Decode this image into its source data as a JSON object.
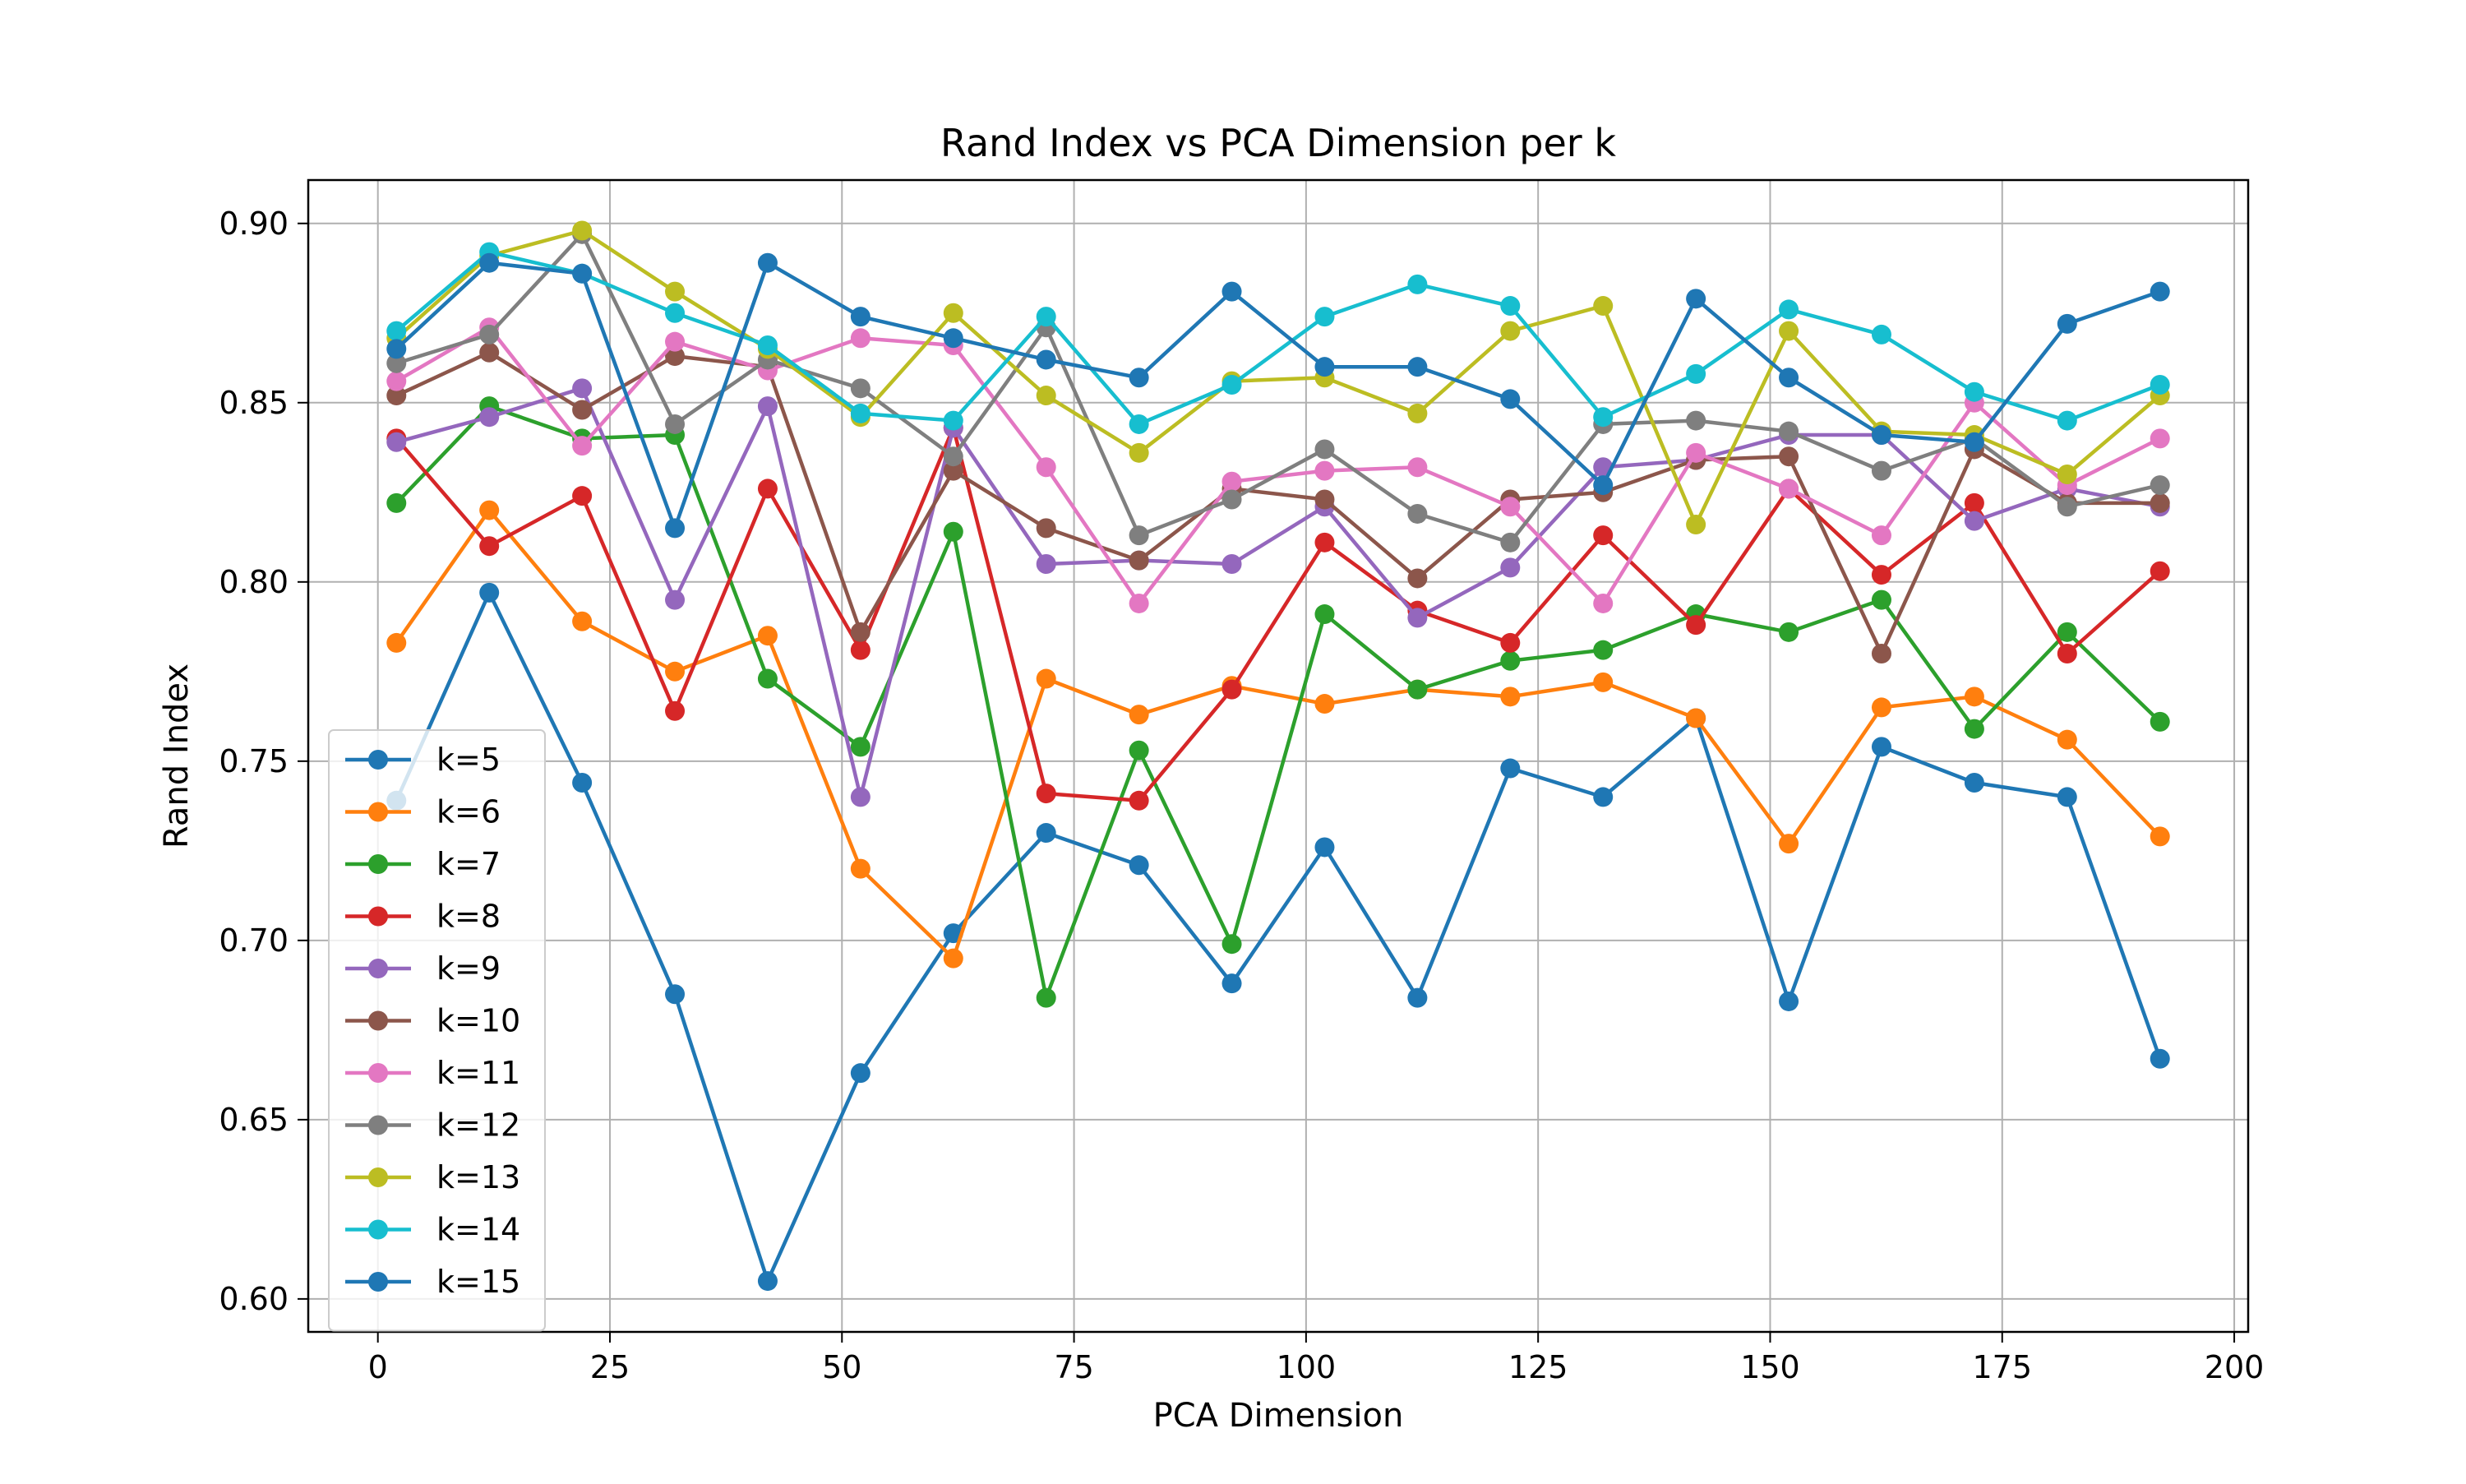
{
  "chart_data": {
    "type": "line",
    "title": "Rand Index vs PCA Dimension per k",
    "xlabel": "PCA Dimension",
    "ylabel": "Rand Index",
    "xlim": [
      -7.5,
      201.5
    ],
    "ylim": [
      0.5908,
      0.9121
    ],
    "xticks": [
      0,
      25,
      50,
      75,
      100,
      125,
      150,
      175,
      200
    ],
    "xtick_labels": [
      "0",
      "25",
      "50",
      "75",
      "100",
      "125",
      "150",
      "175",
      "200"
    ],
    "yticks": [
      0.6,
      0.65,
      0.7,
      0.75,
      0.8,
      0.85,
      0.9
    ],
    "ytick_labels": [
      "0.60",
      "0.65",
      "0.70",
      "0.75",
      "0.80",
      "0.85",
      "0.90"
    ],
    "grid": true,
    "legend_position": "lower-left",
    "x": [
      2,
      12,
      22,
      32,
      42,
      52,
      62,
      72,
      82,
      92,
      102,
      112,
      122,
      132,
      142,
      152,
      162,
      172,
      182,
      192
    ],
    "series": [
      {
        "name": "k=5",
        "color": "#1f77b4",
        "values": [
          0.739,
          0.797,
          0.744,
          0.685,
          0.605,
          0.663,
          0.702,
          0.73,
          0.721,
          0.688,
          0.726,
          0.684,
          0.748,
          0.74,
          0.762,
          0.683,
          0.754,
          0.744,
          0.74,
          0.667
        ]
      },
      {
        "name": "k=6",
        "color": "#ff7f0e",
        "values": [
          0.783,
          0.82,
          0.789,
          0.775,
          0.785,
          0.72,
          0.695,
          0.773,
          0.763,
          0.771,
          0.766,
          0.77,
          0.768,
          0.772,
          0.762,
          0.727,
          0.765,
          0.768,
          0.756,
          0.729
        ]
      },
      {
        "name": "k=7",
        "color": "#2ca02c",
        "values": [
          0.822,
          0.849,
          0.84,
          0.841,
          0.773,
          0.754,
          0.814,
          0.684,
          0.753,
          0.699,
          0.791,
          0.77,
          0.778,
          0.781,
          0.791,
          0.786,
          0.795,
          0.759,
          0.786,
          0.761
        ]
      },
      {
        "name": "k=8",
        "color": "#d62728",
        "values": [
          0.84,
          0.81,
          0.824,
          0.764,
          0.826,
          0.781,
          0.843,
          0.741,
          0.739,
          0.77,
          0.811,
          0.792,
          0.783,
          0.813,
          0.788,
          0.826,
          0.802,
          0.822,
          0.78,
          0.803
        ]
      },
      {
        "name": "k=9",
        "color": "#9467bd",
        "values": [
          0.839,
          0.846,
          0.854,
          0.795,
          0.849,
          0.74,
          0.843,
          0.805,
          0.806,
          0.805,
          0.821,
          0.79,
          0.804,
          0.832,
          0.834,
          0.841,
          0.841,
          0.817,
          0.826,
          0.821
        ]
      },
      {
        "name": "k=10",
        "color": "#8c564b",
        "values": [
          0.852,
          0.864,
          0.848,
          0.863,
          0.86,
          0.786,
          0.831,
          0.815,
          0.806,
          0.826,
          0.823,
          0.801,
          0.823,
          0.825,
          0.834,
          0.835,
          0.78,
          0.837,
          0.822,
          0.822
        ]
      },
      {
        "name": "k=11",
        "color": "#e377c2",
        "values": [
          0.856,
          0.871,
          0.838,
          0.867,
          0.859,
          0.868,
          0.866,
          0.832,
          0.794,
          0.828,
          0.831,
          0.832,
          0.821,
          0.794,
          0.836,
          0.826,
          0.813,
          0.85,
          0.827,
          0.84
        ]
      },
      {
        "name": "k=12",
        "color": "#7f7f7f",
        "values": [
          0.861,
          0.869,
          0.897,
          0.844,
          0.862,
          0.854,
          0.835,
          0.871,
          0.813,
          0.823,
          0.837,
          0.819,
          0.811,
          0.844,
          0.845,
          0.842,
          0.831,
          0.84,
          0.821,
          0.827
        ]
      },
      {
        "name": "k=13",
        "color": "#bcbd22",
        "values": [
          0.868,
          0.891,
          0.898,
          0.881,
          0.865,
          0.846,
          0.875,
          0.852,
          0.836,
          0.856,
          0.857,
          0.847,
          0.87,
          0.877,
          0.816,
          0.87,
          0.842,
          0.841,
          0.83,
          0.852
        ]
      },
      {
        "name": "k=14",
        "color": "#17becf",
        "values": [
          0.87,
          0.892,
          0.886,
          0.875,
          0.866,
          0.847,
          0.845,
          0.874,
          0.844,
          0.855,
          0.874,
          0.883,
          0.877,
          0.846,
          0.858,
          0.876,
          0.869,
          0.853,
          0.845,
          0.855
        ]
      },
      {
        "name": "k=15",
        "color": "#1f77b4",
        "values": [
          0.865,
          0.889,
          0.886,
          0.815,
          0.889,
          0.874,
          0.868,
          0.862,
          0.857,
          0.881,
          0.86,
          0.86,
          0.851,
          0.827,
          0.879,
          0.857,
          0.841,
          0.839,
          0.872,
          0.881
        ]
      }
    ]
  }
}
